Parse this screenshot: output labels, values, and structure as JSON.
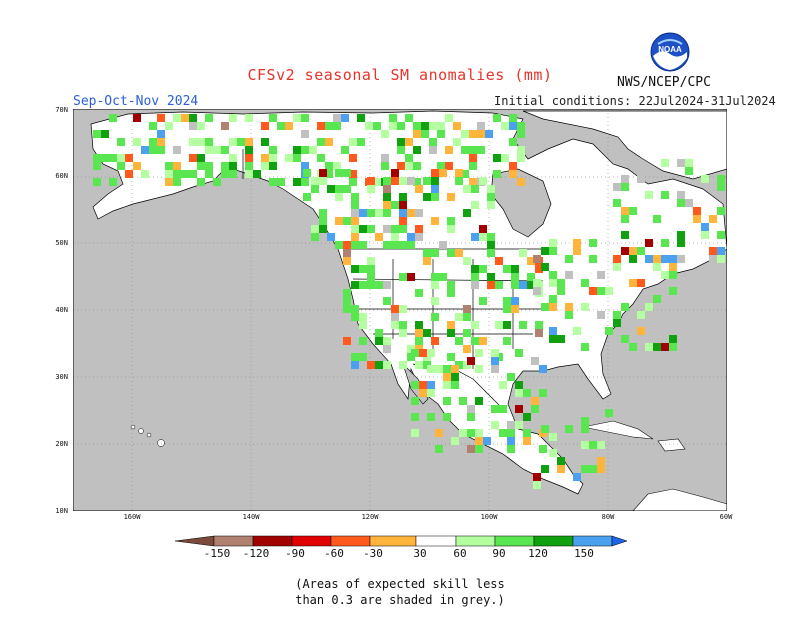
{
  "header": {
    "title": "CFSv2 seasonal SM anomalies (mm)",
    "season": "Sep-Oct-Nov 2024",
    "initial_conditions": "Initial conditions: 22Jul2024-31Jul2024",
    "agency": "NWS/NCEP/CPC",
    "logo_text": "NOAA"
  },
  "map": {
    "lat_labels": [
      "70N",
      "60N",
      "50N",
      "40N",
      "30N",
      "20N",
      "10N"
    ],
    "lon_labels": [
      "160W",
      "140W",
      "120W",
      "100W",
      "80W",
      "60W"
    ],
    "colors": {
      "ocean": "#c0c0c0",
      "land": "#ffffff",
      "grey_skill": "#c0c0c0"
    }
  },
  "legend": {
    "ticks": [
      "-150",
      "-120",
      "-90",
      "-60",
      "-30",
      "30",
      "60",
      "90",
      "120",
      "150"
    ],
    "colors": [
      "#7b4a3a",
      "#b08070",
      "#a00000",
      "#e00000",
      "#ff5a1e",
      "#ffb43c",
      "#ffffff",
      "#b4ffa0",
      "#5ae650",
      "#10a010",
      "#4ba0f0",
      "#1e64e6"
    ]
  },
  "note": {
    "line1": "(Areas of expected skill less",
    "line2": "than 0.3 are shaded in grey.)"
  }
}
